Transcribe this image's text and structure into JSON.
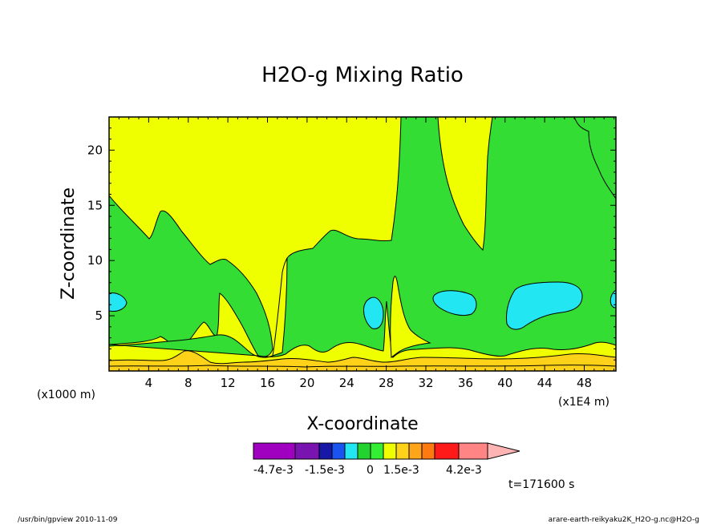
{
  "chart_data": {
    "type": "contour",
    "title": "H2O-g Mixing Ratio",
    "xlabel": "X-coordinate",
    "ylabel": "Z-coordinate",
    "x_unit_left": "(x1000 m)",
    "x_unit_right": "(x1E4 m)",
    "xlim": [
      0,
      51.2
    ],
    "ylim": [
      0,
      23
    ],
    "x_ticks": [
      "4",
      "8",
      "12",
      "16",
      "20",
      "24",
      "28",
      "32",
      "36",
      "40",
      "44",
      "48"
    ],
    "x_tick_values": [
      4,
      8,
      12,
      16,
      20,
      24,
      28,
      32,
      36,
      40,
      44,
      48
    ],
    "y_ticks": [
      "5",
      "10",
      "15",
      "20"
    ],
    "y_tick_values": [
      5,
      10,
      15,
      20
    ],
    "colorbar": {
      "colors": [
        "#a000c0",
        "#7a14b0",
        "#1818a8",
        "#1a54f0",
        "#22e6f2",
        "#22d22e",
        "#33ee33",
        "#f0ff00",
        "#ffd21a",
        "#ffa51a",
        "#ff7a10",
        "#ff1a1a",
        "#ff8484",
        "#ffb4b4"
      ],
      "labels": [
        "-4.7e-3",
        "-1.5e-3",
        "0",
        "1.5e-3",
        "4.2e-3"
      ]
    },
    "regions": {
      "background": "#f0ff00",
      "green": "#33dd33",
      "cyan": "#22e6f2",
      "orange": "#ffd21a"
    },
    "time_label": "t=171600 s"
  },
  "footer": {
    "left": "/usr/bin/gpview   2010-11-09",
    "right": "arare-earth-reikyaku2K_H2O-g.nc@H2O-g"
  }
}
